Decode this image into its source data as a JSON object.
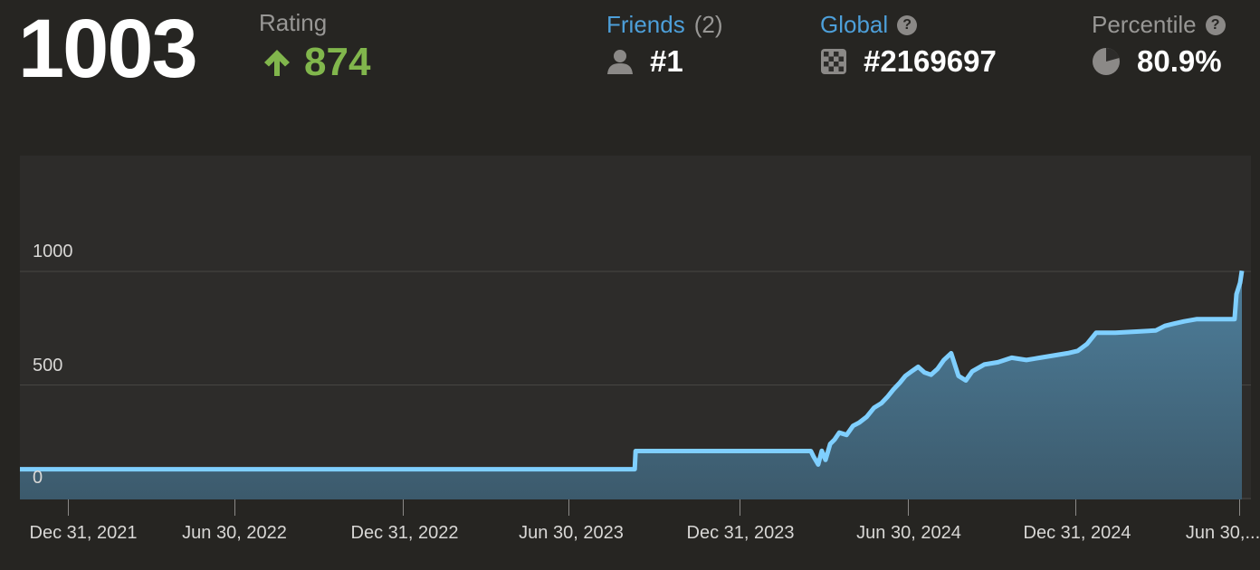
{
  "header": {
    "rating": "1003",
    "rating_label": "Rating",
    "rating_change": "874",
    "colors": {
      "accent_green": "#81b64c",
      "link_blue": "#4d9fd9",
      "line": "#7fcfff"
    },
    "friends": {
      "label": "Friends",
      "count": "(2)",
      "rank": "#1",
      "help": ""
    },
    "global": {
      "label": "Global",
      "rank": "#2169697",
      "help": "?"
    },
    "percentile": {
      "label": "Percentile",
      "value": "80.9%",
      "help": "?"
    },
    "icons": {
      "friends": "person-icon",
      "global": "chessboard-icon",
      "percentile": "pie-chart-icon",
      "change": "arrow-up-icon"
    }
  },
  "chart_data": {
    "type": "area",
    "title": "",
    "xlabel": "",
    "ylabel": "",
    "grid": true,
    "ylim": [
      0,
      1200
    ],
    "yticks": [
      0,
      500,
      1000
    ],
    "xticks": [
      "Dec 31, 2021",
      "Jun 30, 2022",
      "Dec 31, 2022",
      "Jun 30, 2023",
      "Dec 31, 2023",
      "Jun 30, 2024",
      "Dec 31, 2024",
      "Jun 30,..."
    ],
    "series": [
      {
        "x": [
          "2021-10-25",
          "2023-09-10",
          "2023-09-11",
          "2024-03-20",
          "2024-03-23",
          "2024-03-28",
          "2024-04-01",
          "2024-04-05",
          "2024-04-10",
          "2024-04-15",
          "2024-04-20",
          "2024-04-28",
          "2024-05-05",
          "2024-05-12",
          "2024-05-20",
          "2024-05-28",
          "2024-06-05",
          "2024-06-12",
          "2024-06-18",
          "2024-06-25",
          "2024-07-01",
          "2024-07-08",
          "2024-07-15",
          "2024-07-22",
          "2024-07-29",
          "2024-08-05",
          "2024-08-12",
          "2024-08-20",
          "2024-08-28",
          "2024-09-05",
          "2024-09-12",
          "2024-09-25",
          "2024-10-10",
          "2024-10-25",
          "2024-11-10",
          "2024-11-25",
          "2024-12-10",
          "2024-12-25",
          "2025-01-05",
          "2025-01-15",
          "2025-01-25",
          "2025-02-15",
          "2025-03-10",
          "2025-03-31",
          "2025-04-10",
          "2025-04-20",
          "2025-05-01",
          "2025-05-15",
          "2025-06-01",
          "2025-06-15",
          "2025-06-25",
          "2025-06-27",
          "2025-07-01",
          "2025-07-03"
        ],
        "y": [
          129,
          129,
          209,
          209,
          185,
          150,
          210,
          170,
          240,
          260,
          290,
          280,
          320,
          335,
          360,
          400,
          420,
          450,
          480,
          510,
          540,
          560,
          580,
          555,
          545,
          570,
          610,
          640,
          540,
          520,
          560,
          590,
          600,
          620,
          610,
          620,
          630,
          640,
          650,
          680,
          730,
          730,
          735,
          740,
          760,
          770,
          780,
          790,
          790,
          790,
          790,
          900,
          950,
          1003
        ]
      }
    ]
  }
}
